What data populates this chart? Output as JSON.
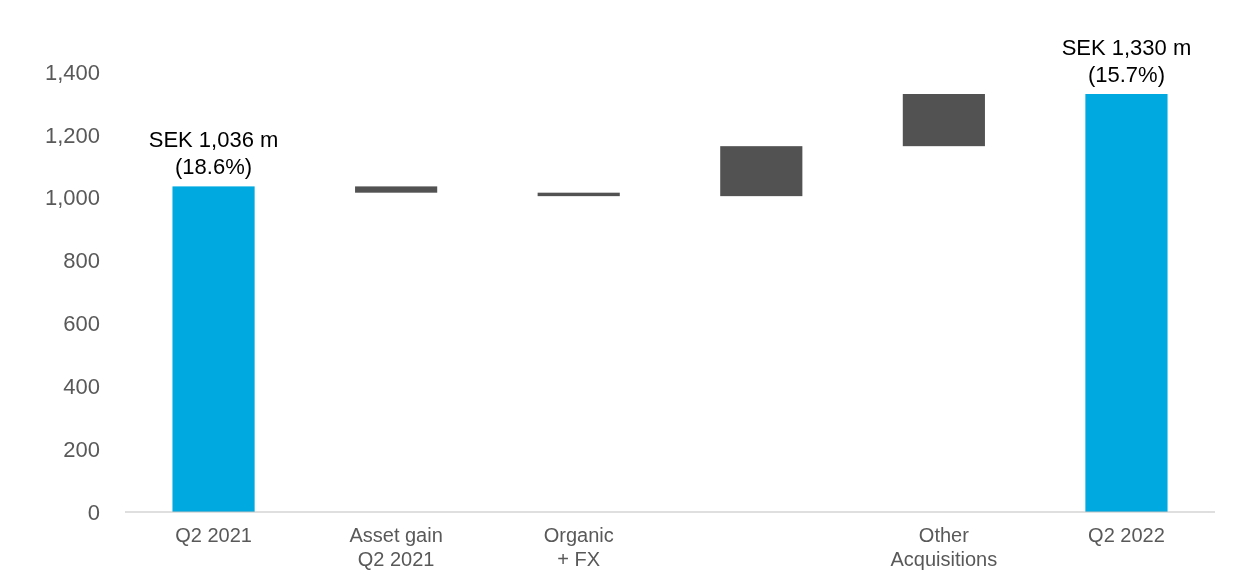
{
  "chart_data": {
    "type": "bar",
    "categories": [
      "Q2 2021",
      "Asset gain\nQ2 2021",
      "Organic\n+ FX",
      null,
      "Other\nAcquisitions",
      "Q2 2022"
    ],
    "values": [
      1036,
      20,
      11,
      159,
      166,
      1330
    ],
    "base": [
      0,
      1016,
      1005,
      1005,
      1164,
      0
    ],
    "colors": [
      "#00a9e0",
      "#525252",
      "#525252",
      "#525252",
      "#525252",
      "#00a9e0"
    ],
    "value_labels": [
      "SEK 1,036 m\n(18.6%)",
      null,
      null,
      null,
      null,
      "SEK 1,330 m\n(15.7%)"
    ],
    "ylim": [
      0,
      1400
    ],
    "yticks": [
      0,
      {
        "value": 200,
        "label": "200"
      },
      {
        "value": 400,
        "label": "400"
      },
      {
        "value": 600,
        "label": "600"
      },
      {
        "value": 800,
        "label": "800"
      },
      {
        "value": 1000,
        "label": "1,000"
      },
      {
        "value": 1200,
        "label": "1,200"
      },
      {
        "value": 1400,
        "label": "1,400"
      }
    ]
  }
}
